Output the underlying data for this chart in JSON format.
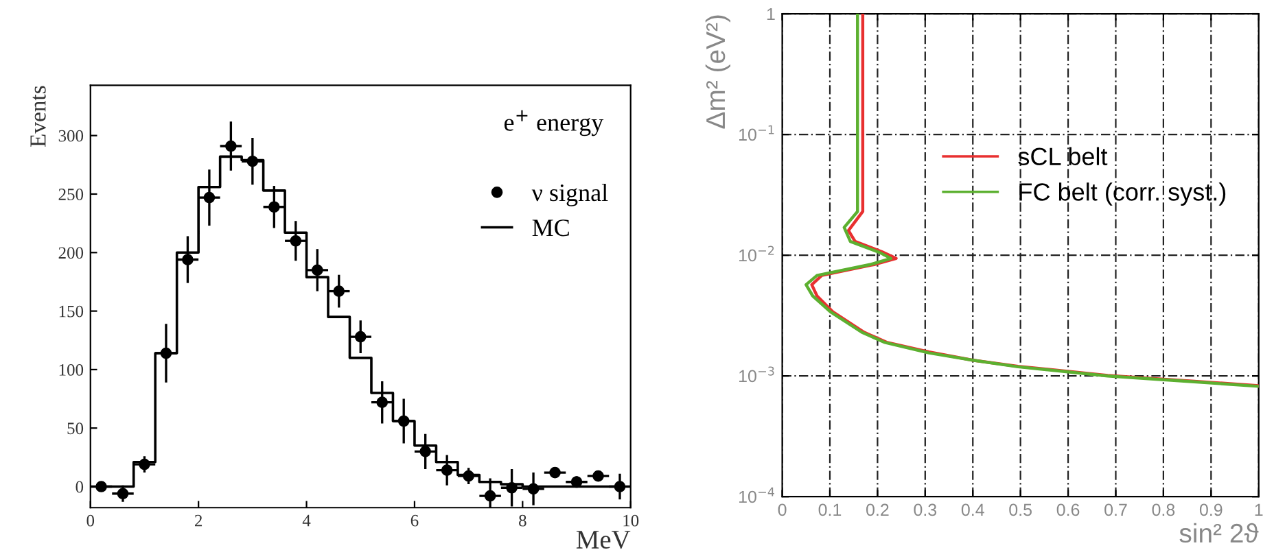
{
  "chart_data": [
    {
      "type": "step",
      "xlabel": "MeV",
      "ylabel": "Events",
      "annotations": [
        "e$^{+}$ energy"
      ],
      "xlim": [
        0,
        10
      ],
      "ylim": [
        -18,
        343
      ],
      "xticks": [
        0,
        2,
        4,
        6,
        8,
        10
      ],
      "yticks": [
        0,
        50,
        100,
        150,
        200,
        250,
        300
      ],
      "grid": false,
      "legend": "top right",
      "series": [
        {
          "name": "ν signal",
          "type": "scatter",
          "color": "#000000",
          "marker": "circle",
          "x": [
            0.2,
            0.6,
            1.0,
            1.4,
            1.8,
            2.2,
            2.6,
            3.0,
            3.4,
            3.8,
            4.2,
            4.6,
            5.0,
            5.4,
            5.8,
            6.2,
            6.6,
            7.0,
            7.4,
            7.8,
            8.2,
            8.6,
            9.0,
            9.4,
            9.8
          ],
          "values": [
            0,
            -6,
            19,
            114,
            194,
            247,
            291,
            278,
            239,
            210,
            185,
            167,
            128,
            72,
            56,
            30,
            14,
            9,
            -8,
            -1,
            -2,
            12,
            4,
            9,
            0
          ],
          "errors": [
            3,
            7,
            7,
            25,
            20,
            24,
            21,
            20,
            18,
            17,
            18,
            14,
            14,
            18,
            19,
            15,
            13,
            7,
            15,
            16,
            14,
            4,
            5,
            4,
            11
          ],
          "xerrors": [
            0.2,
            0.2,
            0.2,
            0.2,
            0.2,
            0.2,
            0.2,
            0.2,
            0.2,
            0.2,
            0.2,
            0.2,
            0.2,
            0.2,
            0.2,
            0.2,
            0.2,
            0.2,
            0.2,
            0.2,
            0.2,
            0.2,
            0.2,
            0.2,
            0.2
          ]
        },
        {
          "name": "MC",
          "type": "step",
          "color": "#000000",
          "x": [
            0.2,
            0.6,
            1.0,
            1.4,
            1.8,
            2.2,
            2.6,
            3.0,
            3.4,
            3.8,
            4.2,
            4.6,
            5.0,
            5.4,
            5.8,
            6.2,
            6.6,
            7.0,
            7.4,
            7.8,
            8.2,
            8.6,
            9.0,
            9.4,
            9.8
          ],
          "values": [
            0,
            0,
            21,
            114,
            200,
            256,
            282,
            279,
            253,
            217,
            179,
            145,
            110,
            80,
            56,
            35,
            21,
            10,
            4,
            2,
            0,
            0,
            0,
            0,
            0
          ]
        }
      ]
    },
    {
      "type": "line",
      "xlabel": "sin² 2ϑ",
      "ylabel": "Δm² (eV²)",
      "log": "y",
      "xlim": [
        0,
        1
      ],
      "ylim": [
        0.0001,
        1
      ],
      "xticks": [
        0,
        0.1,
        0.2,
        0.3,
        0.4,
        0.5,
        0.6,
        0.7,
        0.8,
        0.9,
        1
      ],
      "yticks": [
        {
          "value": 0.0001,
          "label": "10$^{−4}$"
        },
        {
          "value": 0.001,
          "label": "10$^{−3}$"
        },
        {
          "value": 0.01,
          "label": "10$^{−2}$"
        },
        {
          "value": 0.1,
          "label": "10$^{−1}$"
        },
        1
      ],
      "grid": true,
      "legend": "top right",
      "series": [
        {
          "name": "sCL belt",
          "color": "#e83030",
          "x": [
            0.169,
            0.169,
            0.139,
            0.153,
            0.209,
            0.239,
            0.195,
            0.083,
            0.062,
            0.073,
            0.106,
            0.172,
            0.219,
            0.308,
            0.4,
            0.495,
            0.683,
            0.87,
            1.0
          ],
          "values": [
            1,
            0.023,
            0.016,
            0.013,
            0.0107,
            0.0094,
            0.0084,
            0.0068,
            0.0057,
            0.0046,
            0.0034,
            0.0023,
            0.0019,
            0.00158,
            0.00135,
            0.0012,
            0.00101,
            0.0009,
            0.00083
          ]
        },
        {
          "name": "FC belt (corr. syst.)",
          "color": "#5cb030",
          "x": [
            0.158,
            0.158,
            0.13,
            0.143,
            0.205,
            0.228,
            0.186,
            0.073,
            0.05,
            0.064,
            0.101,
            0.167,
            0.214,
            0.308,
            0.4,
            0.495,
            0.683,
            0.87,
            1.0
          ],
          "values": [
            1,
            0.023,
            0.017,
            0.013,
            0.0105,
            0.0094,
            0.0084,
            0.0068,
            0.0057,
            0.0046,
            0.0034,
            0.0023,
            0.0019,
            0.00155,
            0.00135,
            0.00119,
            0.001,
            0.00089,
            0.00082
          ]
        }
      ]
    }
  ]
}
